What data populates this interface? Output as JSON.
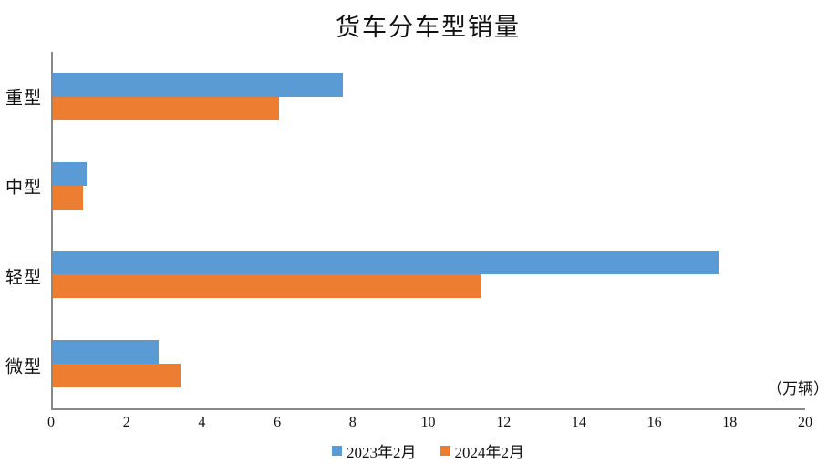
{
  "title": "货车分车型销量",
  "unit_label": "（万辆）",
  "colors": {
    "series_2023": "#5B9BD5",
    "series_2024": "#ED7D31",
    "axis": "#898989",
    "text": "#111111",
    "background": "#FFFFFF"
  },
  "chart_data": {
    "type": "bar",
    "orientation": "horizontal",
    "title": "货车分车型销量",
    "xlabel": "（万辆）",
    "ylabel": "",
    "categories": [
      "重型",
      "中型",
      "轻型",
      "微型"
    ],
    "categories_order": "top-to-bottom",
    "series": [
      {
        "name": "2023年2月",
        "color": "#5B9BD5",
        "values": [
          7.7,
          0.9,
          17.7,
          2.8
        ]
      },
      {
        "name": "2024年2月",
        "color": "#ED7D31",
        "values": [
          6.0,
          0.8,
          11.4,
          3.4
        ]
      }
    ],
    "xlim": [
      0,
      20
    ],
    "xticks": [
      0,
      2,
      4,
      6,
      8,
      10,
      12,
      14,
      16,
      18,
      20
    ],
    "grid": false,
    "legend_position": "bottom"
  },
  "legend": {
    "items": [
      {
        "label": "2023年2月",
        "color": "#5B9BD5"
      },
      {
        "label": "2024年2月",
        "color": "#ED7D31"
      }
    ]
  }
}
